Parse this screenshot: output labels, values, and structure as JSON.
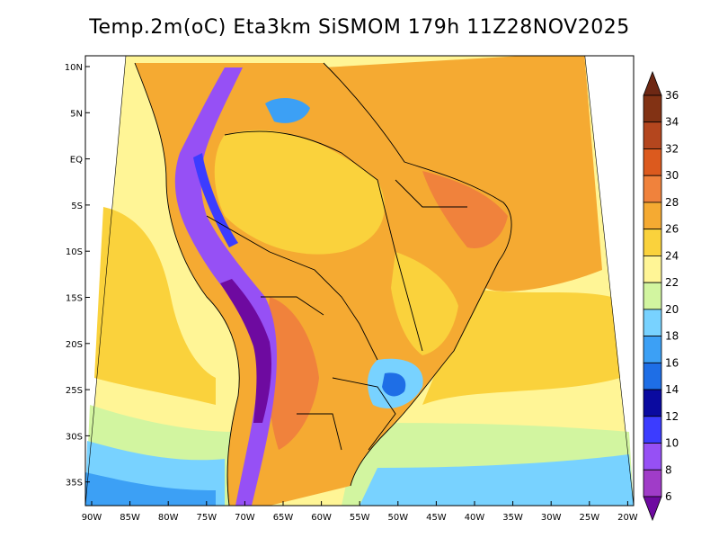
{
  "title": "Temp.2m(oC) Eta3km SiSMOM 179h 11Z28NOV2025",
  "map": {
    "variable": "2m temperature",
    "units": "oC",
    "lat_labels": [
      "10N",
      "5N",
      "EQ",
      "5S",
      "10S",
      "15S",
      "20S",
      "25S",
      "30S",
      "35S"
    ],
    "lon_labels": [
      "90W",
      "85W",
      "80W",
      "75W",
      "70W",
      "65W",
      "60W",
      "55W",
      "50W",
      "45W",
      "40W",
      "35W",
      "30W",
      "25W",
      "20W"
    ]
  },
  "colorbar": {
    "levels": [
      "6",
      "8",
      "10",
      "12",
      "14",
      "16",
      "18",
      "20",
      "22",
      "24",
      "26",
      "28",
      "30",
      "32",
      "34",
      "36"
    ],
    "colors": [
      "#6e0aa0",
      "#a03cc8",
      "#9650f5",
      "#3c3cff",
      "#0a0aa0",
      "#1e6ee6",
      "#3ca0f5",
      "#78d2ff",
      "#d2f5a0",
      "#fff596",
      "#fad23c",
      "#f5aa32",
      "#f0823c",
      "#dc5a1e",
      "#b4461e",
      "#823214",
      "#6e2814"
    ]
  }
}
